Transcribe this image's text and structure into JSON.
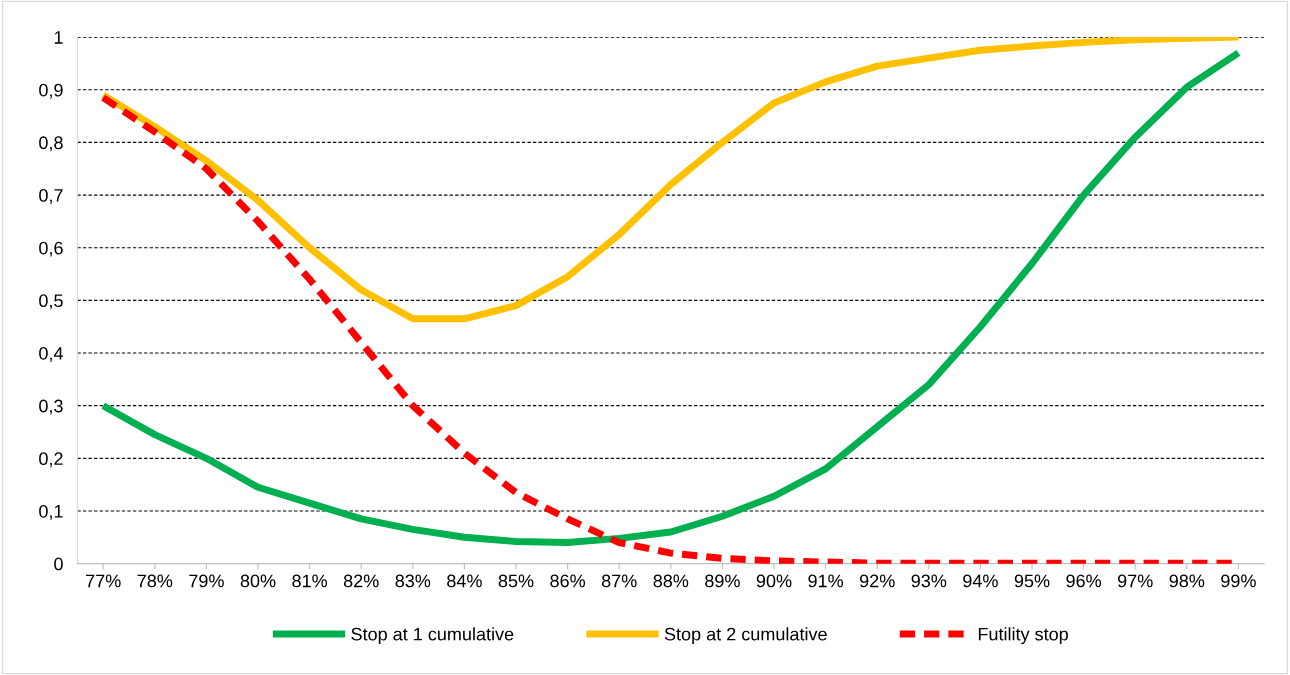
{
  "chart_data": {
    "type": "line",
    "categories": [
      "77%",
      "78%",
      "79%",
      "80%",
      "81%",
      "82%",
      "83%",
      "84%",
      "85%",
      "86%",
      "87%",
      "88%",
      "89%",
      "90%",
      "91%",
      "92%",
      "93%",
      "94%",
      "95%",
      "96%",
      "97%",
      "98%",
      "99%"
    ],
    "series": [
      {
        "name": "Stop at 1 cumulative",
        "color": "#00b050",
        "values": [
          0.3,
          0.245,
          0.2,
          0.145,
          0.115,
          0.085,
          0.065,
          0.05,
          0.042,
          0.04,
          0.048,
          0.06,
          0.09,
          0.128,
          0.18,
          0.26,
          0.34,
          0.45,
          0.57,
          0.7,
          0.81,
          0.905,
          0.97
        ]
      },
      {
        "name": "Stop at 2 cumulative",
        "color": "#ffc000",
        "values": [
          0.89,
          0.83,
          0.765,
          0.69,
          0.6,
          0.52,
          0.465,
          0.465,
          0.49,
          0.545,
          0.625,
          0.72,
          0.8,
          0.875,
          0.915,
          0.945,
          0.96,
          0.975,
          0.983,
          0.99,
          0.995,
          0.998,
          1.0
        ]
      },
      {
        "name": "Futility stop",
        "color": "#ff0000",
        "line_style": "dashed",
        "values": [
          0.885,
          0.82,
          0.75,
          0.65,
          0.54,
          0.42,
          0.3,
          0.21,
          0.135,
          0.085,
          0.04,
          0.02,
          0.01,
          0.005,
          0.003,
          0.001,
          0.001,
          0.001,
          0.001,
          0.001,
          0.001,
          0.001,
          0.001
        ]
      }
    ],
    "ylim": [
      0,
      1
    ],
    "yticks": [
      {
        "value": 0,
        "label": "0"
      },
      {
        "value": 0.1,
        "label": "0,1"
      },
      {
        "value": 0.2,
        "label": "0,2"
      },
      {
        "value": 0.3,
        "label": "0,3"
      },
      {
        "value": 0.4,
        "label": "0,4"
      },
      {
        "value": 0.5,
        "label": "0,5"
      },
      {
        "value": 0.6,
        "label": "0,6"
      },
      {
        "value": 0.7,
        "label": "0,7"
      },
      {
        "value": 0.8,
        "label": "0,8"
      },
      {
        "value": 0.9,
        "label": "0,9"
      },
      {
        "value": 1,
        "label": "1"
      }
    ],
    "grid": "y",
    "legend": "bottom",
    "line_style": "solid",
    "marker": "none"
  }
}
